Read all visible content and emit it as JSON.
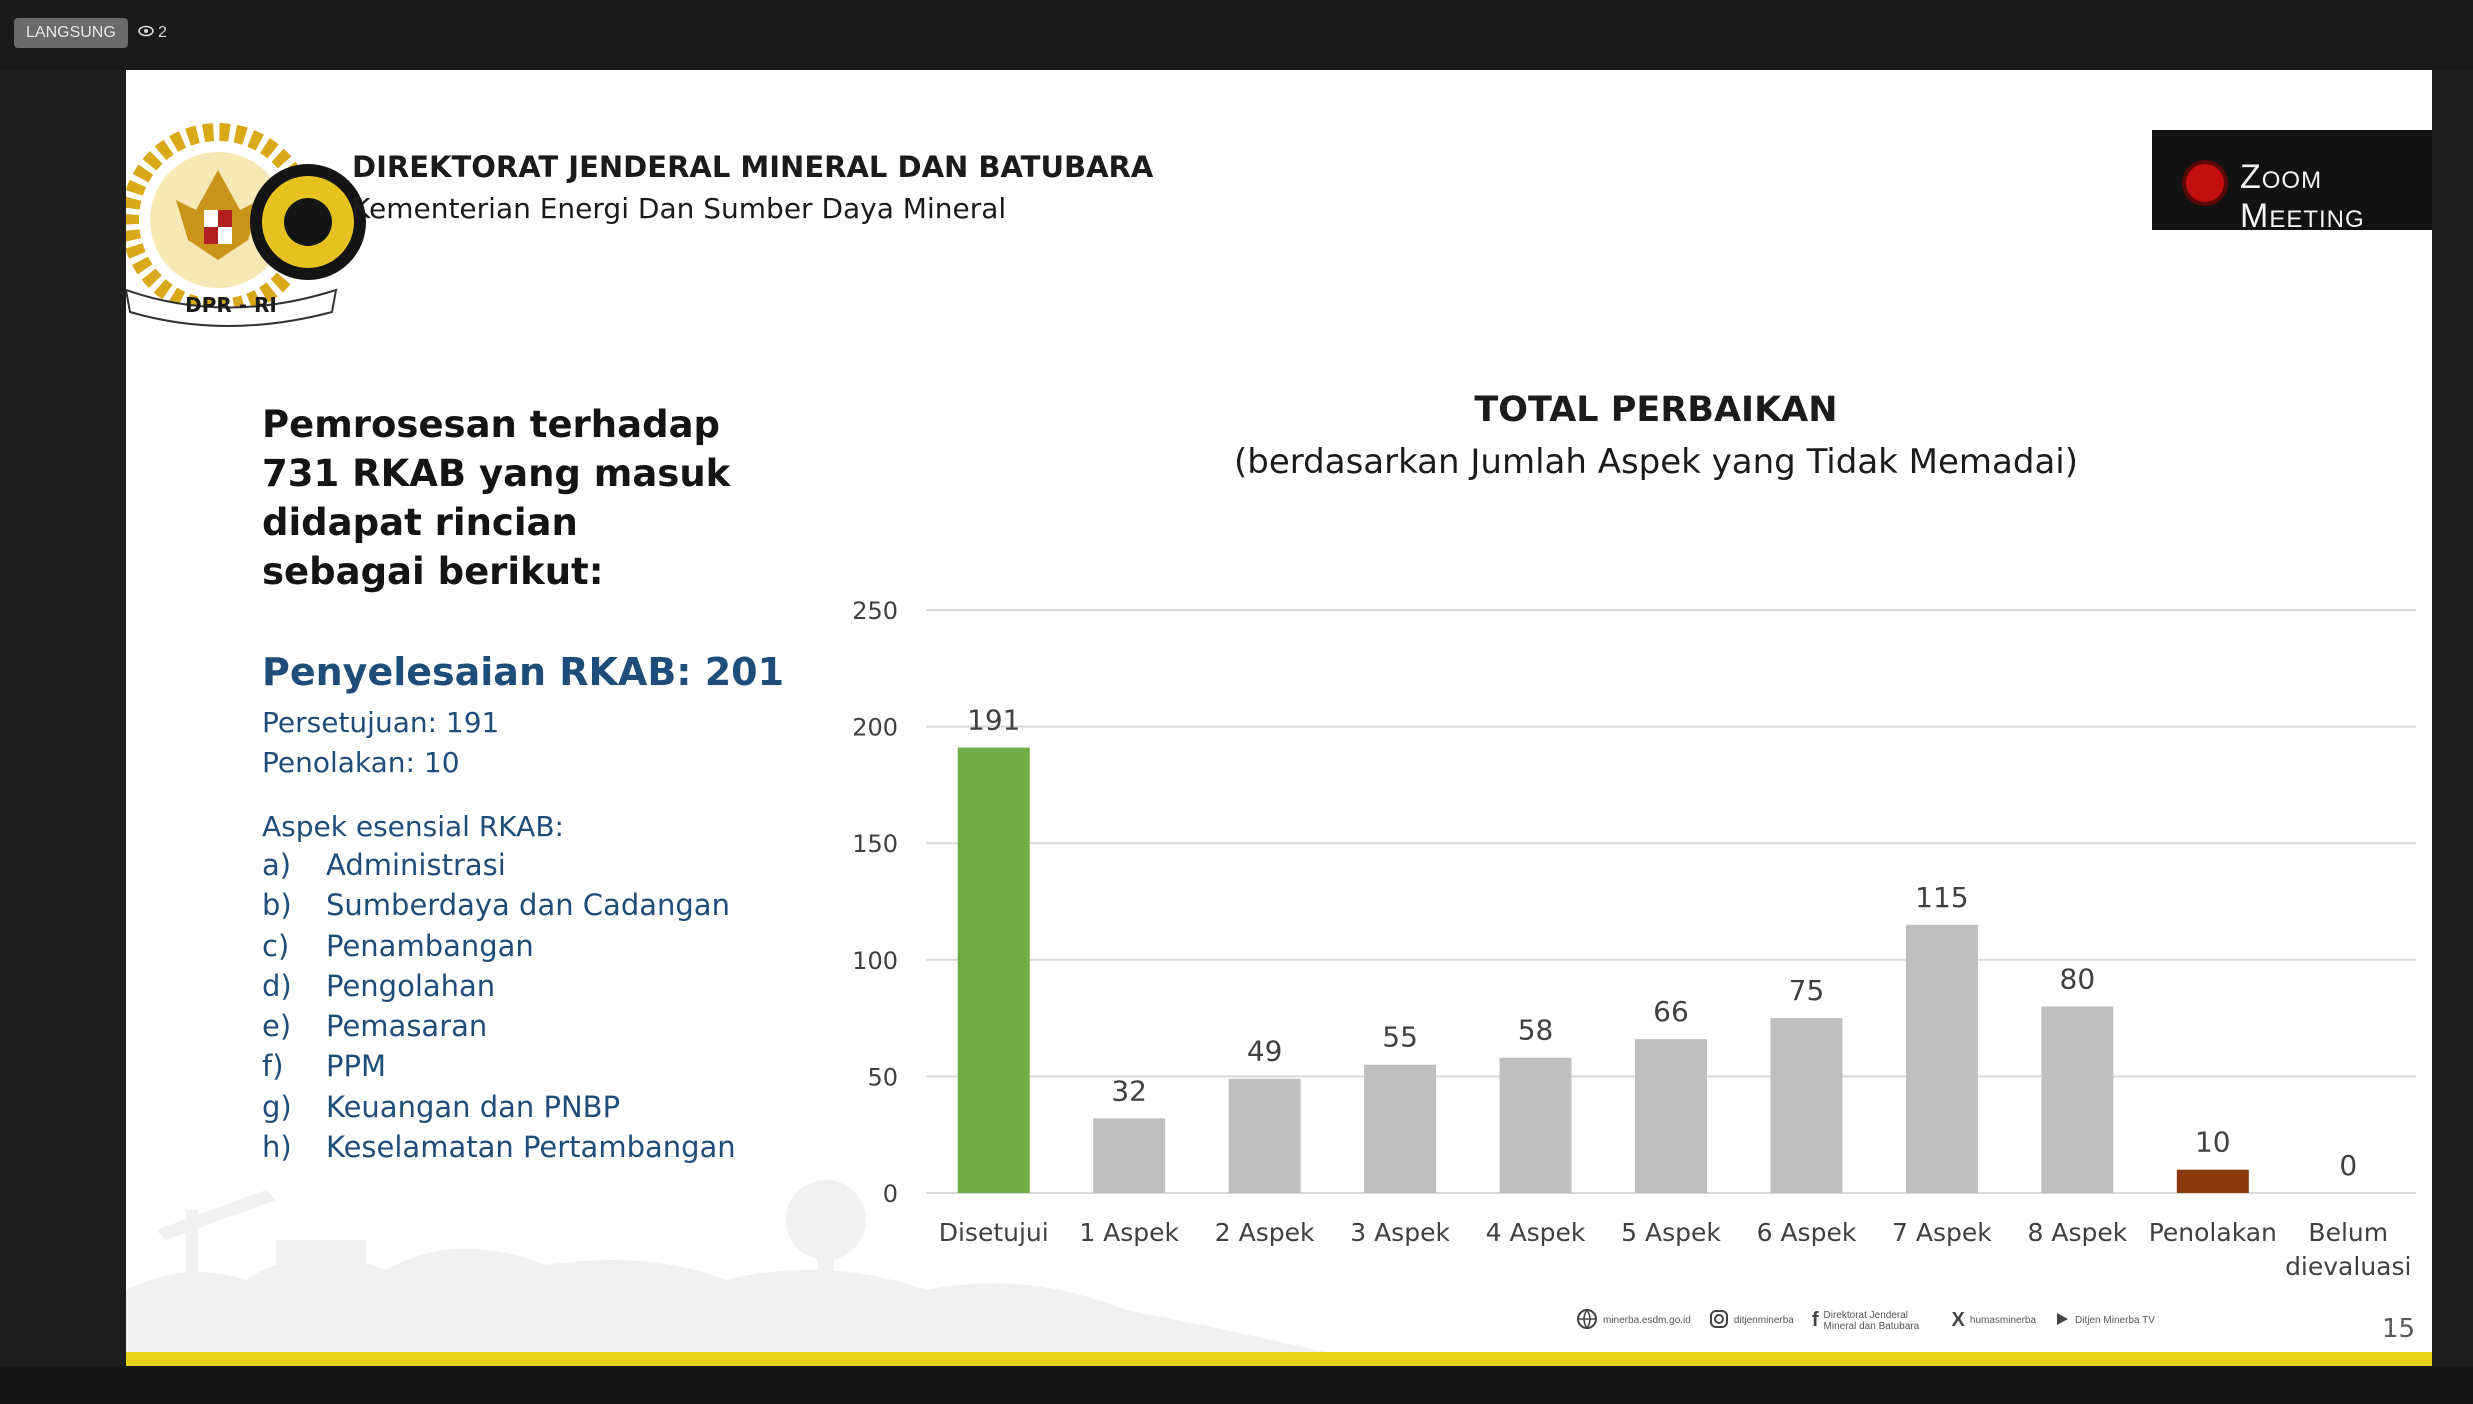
{
  "stream": {
    "live_label": "LANGSUNG",
    "viewer_count": "2"
  },
  "header": {
    "org_title": "DIREKTORAT JENDERAL MINERAL DAN BATUBARA",
    "org_subtitle": "Kementerian Energi Dan Sumber Daya Mineral",
    "badge_text": "DPR - RI"
  },
  "zoom": {
    "label": "Zoom Meeting"
  },
  "left_panel": {
    "intro": "Pemrosesan terhadap 731 RKAB yang masuk didapat rincian sebagai berikut:",
    "completion": "Penyelesaian RKAB: 201",
    "approval": "Persetujuan: 191",
    "rejection": "Penolakan: 10",
    "aspects_heading": "Aspek esensial RKAB:",
    "aspects": [
      {
        "letter": "a)",
        "text": "Administrasi"
      },
      {
        "letter": "b)",
        "text": "Sumberdaya dan Cadangan"
      },
      {
        "letter": "c)",
        "text": "Penambangan"
      },
      {
        "letter": "d)",
        "text": "Pengolahan"
      },
      {
        "letter": "e)",
        "text": "Pemasaran"
      },
      {
        "letter": "f)",
        "text": "PPM"
      },
      {
        "letter": "g)",
        "text": "Keuangan dan PNBP"
      },
      {
        "letter": "h)",
        "text": "Keselamatan Pertambangan"
      }
    ]
  },
  "chart_data": {
    "type": "bar",
    "title": "TOTAL PERBAIKAN",
    "subtitle": "(berdasarkan Jumlah Aspek yang Tidak Memadai)",
    "categories": [
      "Disetujui",
      "1 Aspek",
      "2 Aspek",
      "3 Aspek",
      "4 Aspek",
      "5 Aspek",
      "6 Aspek",
      "7 Aspek",
      "8 Aspek",
      "Penolakan",
      "Belum dievaluasi"
    ],
    "values": [
      191,
      32,
      49,
      55,
      58,
      66,
      75,
      115,
      80,
      10,
      0
    ],
    "bar_colors": [
      "#70ad47",
      "#bfbfbf",
      "#bfbfbf",
      "#bfbfbf",
      "#bfbfbf",
      "#bfbfbf",
      "#bfbfbf",
      "#bfbfbf",
      "#bfbfbf",
      "#8b3a0f",
      "#bfbfbf"
    ],
    "ylim": [
      0,
      250
    ],
    "yticks": [
      0,
      50,
      100,
      150,
      200,
      250
    ],
    "grid": true
  },
  "footer": {
    "items": [
      {
        "icon": "globe-icon",
        "text": "minerba.esdm.go.id"
      },
      {
        "icon": "instagram-icon",
        "text": "ditjenminerba"
      },
      {
        "icon": "facebook-icon",
        "text": "Direktorat Jenderal Mineral dan Batubara"
      },
      {
        "icon": "x-icon",
        "text": "humasminerba"
      },
      {
        "icon": "play-icon",
        "text": "Ditjen Minerba TV"
      }
    ],
    "page_number": "15"
  },
  "colors": {
    "accent_blue": "#1f4d7a",
    "approved_green": "#70ad47",
    "rejected_brown": "#8b3a0f",
    "neutral_bar": "#bfbfbf",
    "footer_band": "#e6d21a"
  }
}
